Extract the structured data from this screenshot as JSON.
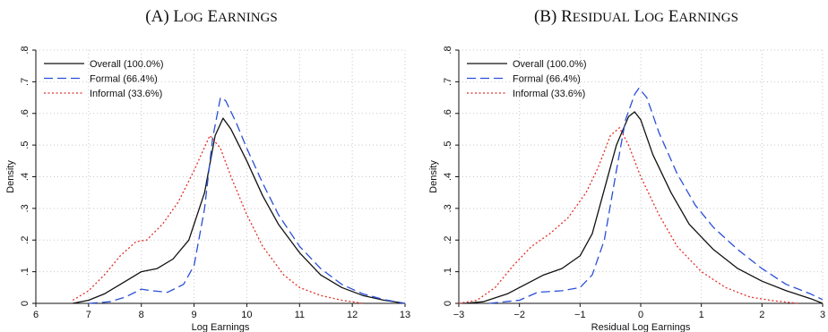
{
  "chart_data": [
    {
      "type": "line",
      "title": "(A) Log Earnings",
      "xlabel": "Log Earnings",
      "ylabel": "Density",
      "xlim": [
        6,
        13
      ],
      "ylim": [
        0,
        0.8
      ],
      "xticks": [
        "6",
        "7",
        "8",
        "9",
        "10",
        "11",
        "12",
        "13"
      ],
      "yticks": [
        "0",
        ".1",
        ".2",
        ".3",
        ".4",
        ".5",
        ".6",
        ".7",
        ".8"
      ],
      "grid": true,
      "legend": "top-left",
      "series": [
        {
          "name": "Overall (100.0%)",
          "color": "#111111",
          "dash": "solid",
          "points": [
            [
              6.7,
              0.0
            ],
            [
              7.0,
              0.01
            ],
            [
              7.3,
              0.03
            ],
            [
              7.6,
              0.06
            ],
            [
              7.9,
              0.09
            ],
            [
              8.0,
              0.1
            ],
            [
              8.3,
              0.11
            ],
            [
              8.6,
              0.14
            ],
            [
              8.9,
              0.2
            ],
            [
              9.2,
              0.35
            ],
            [
              9.4,
              0.53
            ],
            [
              9.55,
              0.585
            ],
            [
              9.7,
              0.55
            ],
            [
              10.0,
              0.45
            ],
            [
              10.3,
              0.34
            ],
            [
              10.6,
              0.25
            ],
            [
              11.0,
              0.16
            ],
            [
              11.4,
              0.09
            ],
            [
              11.8,
              0.05
            ],
            [
              12.2,
              0.025
            ],
            [
              12.6,
              0.01
            ],
            [
              13.0,
              0.0
            ]
          ]
        },
        {
          "name": "Formal (66.4%)",
          "color": "#2a4fd6",
          "dash": "long",
          "points": [
            [
              7.0,
              0.0
            ],
            [
              7.4,
              0.005
            ],
            [
              7.7,
              0.02
            ],
            [
              8.0,
              0.045
            ],
            [
              8.2,
              0.04
            ],
            [
              8.5,
              0.035
            ],
            [
              8.8,
              0.06
            ],
            [
              9.0,
              0.12
            ],
            [
              9.2,
              0.3
            ],
            [
              9.35,
              0.52
            ],
            [
              9.5,
              0.65
            ],
            [
              9.6,
              0.64
            ],
            [
              9.8,
              0.57
            ],
            [
              10.0,
              0.49
            ],
            [
              10.3,
              0.38
            ],
            [
              10.6,
              0.28
            ],
            [
              11.0,
              0.18
            ],
            [
              11.4,
              0.11
            ],
            [
              11.8,
              0.06
            ],
            [
              12.2,
              0.03
            ],
            [
              12.6,
              0.012
            ],
            [
              13.0,
              0.0
            ]
          ]
        },
        {
          "name": "Informal (33.6%)",
          "color": "#e0302a",
          "dash": "dot",
          "points": [
            [
              6.7,
              0.01
            ],
            [
              7.0,
              0.04
            ],
            [
              7.3,
              0.09
            ],
            [
              7.6,
              0.15
            ],
            [
              7.9,
              0.195
            ],
            [
              8.1,
              0.2
            ],
            [
              8.4,
              0.25
            ],
            [
              8.7,
              0.32
            ],
            [
              9.0,
              0.42
            ],
            [
              9.3,
              0.53
            ],
            [
              9.5,
              0.49
            ],
            [
              9.7,
              0.4
            ],
            [
              10.0,
              0.28
            ],
            [
              10.3,
              0.18
            ],
            [
              10.7,
              0.09
            ],
            [
              11.0,
              0.05
            ],
            [
              11.4,
              0.025
            ],
            [
              11.8,
              0.01
            ],
            [
              12.2,
              0.0
            ]
          ]
        }
      ]
    },
    {
      "type": "line",
      "title": "(B) Residual Log Earnings",
      "xlabel": "Residual Log Earnings",
      "ylabel": "Density",
      "xlim": [
        -3,
        3
      ],
      "ylim": [
        0,
        0.8
      ],
      "xticks": [
        "−3",
        "−2",
        "−1",
        "0",
        "1",
        "2",
        "3"
      ],
      "yticks": [
        "0",
        ".1",
        ".2",
        ".3",
        ".4",
        ".5",
        ".6",
        ".7",
        ".8"
      ],
      "grid": true,
      "legend": "top-left",
      "series": [
        {
          "name": "Overall (100.0%)",
          "color": "#111111",
          "dash": "solid",
          "points": [
            [
              -2.9,
              0.0
            ],
            [
              -2.6,
              0.005
            ],
            [
              -2.2,
              0.03
            ],
            [
              -1.9,
              0.06
            ],
            [
              -1.6,
              0.09
            ],
            [
              -1.3,
              0.11
            ],
            [
              -1.0,
              0.15
            ],
            [
              -0.8,
              0.22
            ],
            [
              -0.6,
              0.36
            ],
            [
              -0.4,
              0.5
            ],
            [
              -0.2,
              0.59
            ],
            [
              -0.1,
              0.605
            ],
            [
              0.0,
              0.58
            ],
            [
              0.2,
              0.47
            ],
            [
              0.5,
              0.35
            ],
            [
              0.8,
              0.25
            ],
            [
              1.2,
              0.17
            ],
            [
              1.6,
              0.11
            ],
            [
              2.0,
              0.07
            ],
            [
              2.4,
              0.04
            ],
            [
              2.8,
              0.015
            ],
            [
              3.0,
              0.0
            ]
          ]
        },
        {
          "name": "Formal (66.4%)",
          "color": "#2a4fd6",
          "dash": "long",
          "points": [
            [
              -2.5,
              0.0
            ],
            [
              -2.0,
              0.01
            ],
            [
              -1.7,
              0.035
            ],
            [
              -1.3,
              0.04
            ],
            [
              -1.0,
              0.05
            ],
            [
              -0.8,
              0.09
            ],
            [
              -0.6,
              0.2
            ],
            [
              -0.4,
              0.42
            ],
            [
              -0.25,
              0.58
            ],
            [
              -0.1,
              0.66
            ],
            [
              -0.03,
              0.68
            ],
            [
              0.1,
              0.65
            ],
            [
              0.3,
              0.54
            ],
            [
              0.6,
              0.41
            ],
            [
              0.9,
              0.31
            ],
            [
              1.2,
              0.24
            ],
            [
              1.6,
              0.17
            ],
            [
              2.0,
              0.11
            ],
            [
              2.4,
              0.06
            ],
            [
              2.8,
              0.03
            ],
            [
              3.0,
              0.012
            ]
          ]
        },
        {
          "name": "Informal (33.6%)",
          "color": "#e0302a",
          "dash": "dot",
          "points": [
            [
              -3.0,
              0.0
            ],
            [
              -2.7,
              0.01
            ],
            [
              -2.4,
              0.05
            ],
            [
              -2.1,
              0.12
            ],
            [
              -1.8,
              0.18
            ],
            [
              -1.5,
              0.22
            ],
            [
              -1.2,
              0.27
            ],
            [
              -0.9,
              0.35
            ],
            [
              -0.7,
              0.43
            ],
            [
              -0.5,
              0.53
            ],
            [
              -0.35,
              0.555
            ],
            [
              -0.2,
              0.5
            ],
            [
              0.0,
              0.4
            ],
            [
              0.3,
              0.28
            ],
            [
              0.6,
              0.18
            ],
            [
              1.0,
              0.1
            ],
            [
              1.4,
              0.05
            ],
            [
              1.8,
              0.02
            ],
            [
              2.2,
              0.008
            ],
            [
              2.6,
              0.0
            ]
          ]
        }
      ]
    }
  ]
}
